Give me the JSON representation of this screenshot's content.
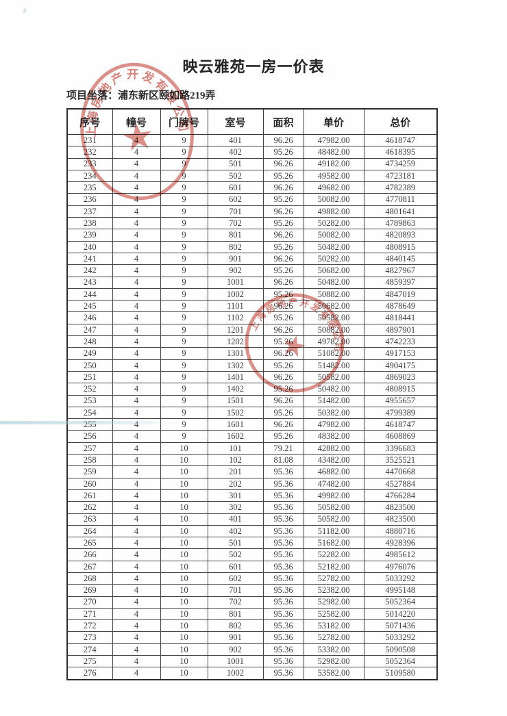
{
  "doc": {
    "title": "映云雅苑一房一价表",
    "location_label": "项目坐落：",
    "location_value": "浦东新区颐如路219弄"
  },
  "table": {
    "headers": [
      "序号",
      "幢号",
      "门牌号",
      "室号",
      "面积",
      "单价",
      "总价"
    ],
    "header_keys": [
      "index",
      "building-no",
      "doorplate-no",
      "room-no",
      "area",
      "unit-price",
      "total-price"
    ],
    "rows": [
      [
        "231",
        "4",
        "9",
        "401",
        "96.26",
        "47982.00",
        "4618747"
      ],
      [
        "232",
        "4",
        "9",
        "402",
        "95.26",
        "48482.00",
        "4618395"
      ],
      [
        "233",
        "4",
        "9",
        "501",
        "96.26",
        "49182.00",
        "4734259"
      ],
      [
        "234",
        "4",
        "9",
        "502",
        "95.26",
        "49582.00",
        "4723181"
      ],
      [
        "235",
        "4",
        "9",
        "601",
        "96.26",
        "49682.00",
        "4782389"
      ],
      [
        "236",
        "4",
        "9",
        "602",
        "95.26",
        "50082.00",
        "4770811"
      ],
      [
        "237",
        "4",
        "9",
        "701",
        "96.26",
        "49882.00",
        "4801641"
      ],
      [
        "238",
        "4",
        "9",
        "702",
        "95.26",
        "50282.00",
        "4789863"
      ],
      [
        "239",
        "4",
        "9",
        "801",
        "96.26",
        "50082.00",
        "4820893"
      ],
      [
        "240",
        "4",
        "9",
        "802",
        "95.26",
        "50482.00",
        "4808915"
      ],
      [
        "241",
        "4",
        "9",
        "901",
        "96.26",
        "50282.00",
        "4840145"
      ],
      [
        "242",
        "4",
        "9",
        "902",
        "95.26",
        "50682.00",
        "4827967"
      ],
      [
        "243",
        "4",
        "9",
        "1001",
        "96.26",
        "50482.00",
        "4859397"
      ],
      [
        "244",
        "4",
        "9",
        "1002",
        "95.26",
        "50882.00",
        "4847019"
      ],
      [
        "245",
        "4",
        "9",
        "1101",
        "96.26",
        "50682.00",
        "4878649"
      ],
      [
        "246",
        "4",
        "9",
        "1102",
        "95.26",
        "50582.00",
        "4818441"
      ],
      [
        "247",
        "4",
        "9",
        "1201",
        "96.26",
        "50882.00",
        "4897901"
      ],
      [
        "248",
        "4",
        "9",
        "1202",
        "95.26",
        "49782.00",
        "4742233"
      ],
      [
        "249",
        "4",
        "9",
        "1301",
        "96.26",
        "51082.00",
        "4917153"
      ],
      [
        "250",
        "4",
        "9",
        "1302",
        "95.26",
        "51482.00",
        "4904175"
      ],
      [
        "251",
        "4",
        "9",
        "1401",
        "96.26",
        "50582.00",
        "4869023"
      ],
      [
        "252",
        "4",
        "9",
        "1402",
        "95.26",
        "50482.00",
        "4808915"
      ],
      [
        "253",
        "4",
        "9",
        "1501",
        "96.26",
        "51482.00",
        "4955657"
      ],
      [
        "254",
        "4",
        "9",
        "1502",
        "95.26",
        "50382.00",
        "4799389"
      ],
      [
        "255",
        "4",
        "9",
        "1601",
        "96.26",
        "47982.00",
        "4618747"
      ],
      [
        "256",
        "4",
        "9",
        "1602",
        "95.26",
        "48382.00",
        "4608869"
      ],
      [
        "257",
        "4",
        "10",
        "101",
        "79.21",
        "42882.00",
        "3396683"
      ],
      [
        "258",
        "4",
        "10",
        "102",
        "81.08",
        "43482.00",
        "3525521"
      ],
      [
        "259",
        "4",
        "10",
        "201",
        "95.36",
        "46882.00",
        "4470668"
      ],
      [
        "260",
        "4",
        "10",
        "202",
        "95.36",
        "47482.00",
        "4527884"
      ],
      [
        "261",
        "4",
        "10",
        "301",
        "95.36",
        "49982.00",
        "4766284"
      ],
      [
        "262",
        "4",
        "10",
        "302",
        "95.36",
        "50582.00",
        "4823500"
      ],
      [
        "263",
        "4",
        "10",
        "401",
        "95.36",
        "50582.00",
        "4823500"
      ],
      [
        "264",
        "4",
        "10",
        "402",
        "95.36",
        "51182.00",
        "4880716"
      ],
      [
        "265",
        "4",
        "10",
        "501",
        "95.36",
        "51682.00",
        "4928396"
      ],
      [
        "266",
        "4",
        "10",
        "502",
        "95.36",
        "52282.00",
        "4985612"
      ],
      [
        "267",
        "4",
        "10",
        "601",
        "95.36",
        "52182.00",
        "4976076"
      ],
      [
        "268",
        "4",
        "10",
        "602",
        "95.36",
        "52782.00",
        "5033292"
      ],
      [
        "269",
        "4",
        "10",
        "701",
        "95.36",
        "52382.00",
        "4995148"
      ],
      [
        "270",
        "4",
        "10",
        "702",
        "95.36",
        "52982.00",
        "5052364"
      ],
      [
        "271",
        "4",
        "10",
        "801",
        "95.36",
        "52582.00",
        "5014220"
      ],
      [
        "272",
        "4",
        "10",
        "802",
        "95.36",
        "53182.00",
        "5071436"
      ],
      [
        "273",
        "4",
        "10",
        "901",
        "95.36",
        "52782.00",
        "5033292"
      ],
      [
        "274",
        "4",
        "10",
        "902",
        "95.36",
        "53382.00",
        "5090508"
      ],
      [
        "275",
        "4",
        "10",
        "1001",
        "95.36",
        "52982.00",
        "5052364"
      ],
      [
        "276",
        "4",
        "10",
        "1002",
        "95.36",
        "53582.00",
        "5109580"
      ]
    ]
  },
  "seal": {
    "text": "上海房地产开发有限公司",
    "star_glyph": "★",
    "color": "#c0392b"
  }
}
